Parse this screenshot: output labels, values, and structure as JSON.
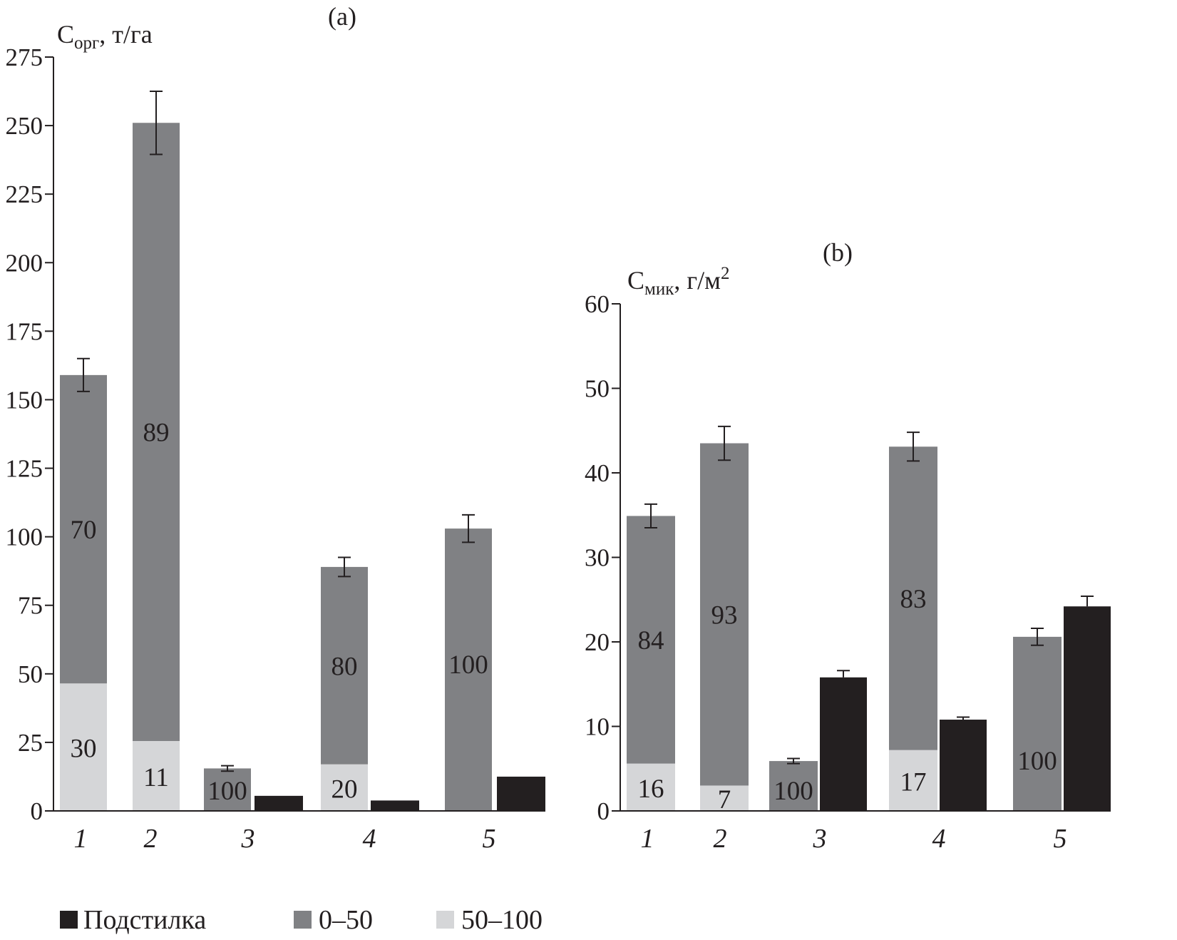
{
  "colors": {
    "litter": "#231f20",
    "layer_0_50": "#808184",
    "layer_50_100": "#d5d6d8",
    "axis": "#231f20"
  },
  "legend": {
    "litter": "Подстилка",
    "layer_0_50": "0–50",
    "layer_50_100": "50–100"
  },
  "chart_data": [
    {
      "type": "bar",
      "stacked": true,
      "panel_label": "(a)",
      "ylabel_main": "C",
      "ylabel_sub": "орг",
      "ylabel_unit": ", т/га",
      "ylim": [
        0,
        275
      ],
      "yticks": [
        0,
        25,
        50,
        75,
        100,
        125,
        150,
        175,
        200,
        225,
        250,
        275
      ],
      "categories": [
        "1",
        "2",
        "3",
        "4",
        "5"
      ],
      "soil": [
        {
          "layer_50_100": 46.5,
          "layer_0_50": 112.5,
          "total": 159,
          "err": 6,
          "label_50_100": "30",
          "label_0_50": "70"
        },
        {
          "layer_50_100": 25.5,
          "layer_0_50": 225.5,
          "total": 251,
          "err": 11.5,
          "label_50_100": "11",
          "label_0_50": "89"
        },
        {
          "layer_50_100": 0,
          "layer_0_50": 15.5,
          "total": 15.5,
          "err": 1,
          "label_50_100": "",
          "label_0_50": "100"
        },
        {
          "layer_50_100": 17,
          "layer_0_50": 72,
          "total": 89,
          "err": 3.5,
          "label_50_100": "20",
          "label_0_50": "80"
        },
        {
          "layer_50_100": 0,
          "layer_0_50": 103,
          "total": 103,
          "err": 5,
          "label_50_100": "",
          "label_0_50": "100"
        }
      ],
      "litter": [
        null,
        null,
        5.5,
        3.8,
        12.5
      ],
      "litter_err": [
        null,
        null,
        null,
        null,
        null
      ]
    },
    {
      "type": "bar",
      "stacked": true,
      "panel_label": "(b)",
      "ylabel_main": "C",
      "ylabel_sub": "мик",
      "ylabel_unit": ", г/м",
      "ylabel_sup": "2",
      "ylim": [
        0,
        60
      ],
      "yticks": [
        0,
        10,
        20,
        30,
        40,
        50,
        60
      ],
      "categories": [
        "1",
        "2",
        "3",
        "4",
        "5"
      ],
      "soil": [
        {
          "layer_50_100": 5.6,
          "layer_0_50": 29.3,
          "total": 34.9,
          "err": 1.4,
          "label_50_100": "16",
          "label_0_50": "84"
        },
        {
          "layer_50_100": 3.0,
          "layer_0_50": 40.5,
          "total": 43.5,
          "err": 2.0,
          "label_50_100": "7",
          "label_0_50": "93"
        },
        {
          "layer_50_100": 0,
          "layer_0_50": 5.9,
          "total": 5.9,
          "err": 0.3,
          "label_50_100": "",
          "label_0_50": "100"
        },
        {
          "layer_50_100": 7.2,
          "layer_0_50": 35.9,
          "total": 43.1,
          "err": 1.7,
          "label_50_100": "17",
          "label_0_50": "83"
        },
        {
          "layer_50_100": 0,
          "layer_0_50": 20.6,
          "total": 20.6,
          "err": 1.0,
          "label_50_100": "",
          "label_0_50": "100"
        }
      ],
      "litter": [
        null,
        null,
        15.8,
        10.8,
        24.2
      ],
      "litter_err": [
        null,
        null,
        0.8,
        0.3,
        1.2
      ]
    }
  ]
}
